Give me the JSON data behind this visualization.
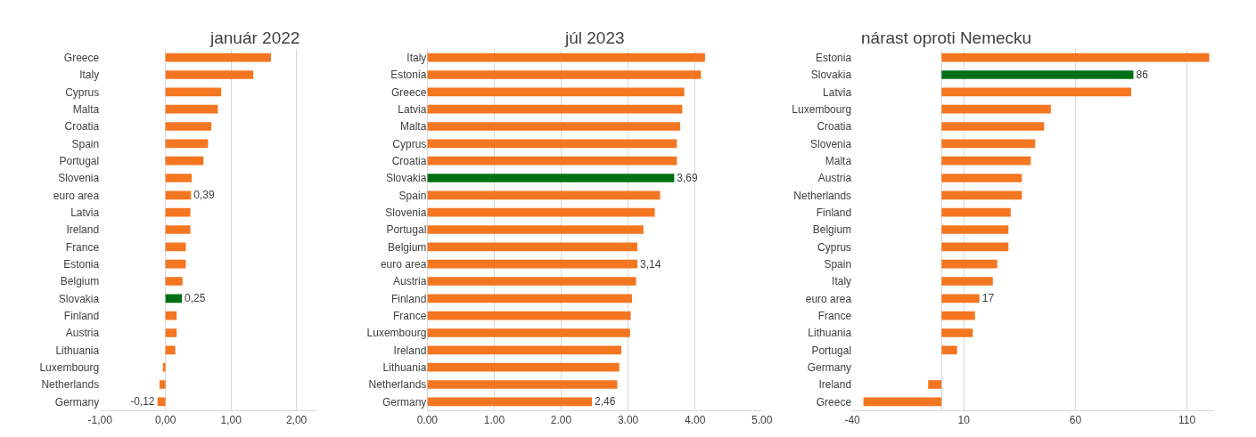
{
  "chart_data": [
    {
      "type": "bar",
      "orientation": "horizontal",
      "title": "január 2022",
      "categories": [
        "Greece",
        "Italy",
        "Cyprus",
        "Malta",
        "Croatia",
        "Spain",
        "Portugal",
        "Slovenia",
        "euro area",
        "Latvia",
        "Ireland",
        "France",
        "Estonia",
        "Belgium",
        "Slovakia",
        "Finland",
        "Austria",
        "Lithuania",
        "Luxembourg",
        "Netherlands",
        "Germany"
      ],
      "values": [
        1.61,
        1.34,
        0.85,
        0.8,
        0.7,
        0.65,
        0.58,
        0.4,
        0.39,
        0.38,
        0.38,
        0.31,
        0.31,
        0.26,
        0.25,
        0.17,
        0.17,
        0.15,
        -0.04,
        -0.09,
        -0.12
      ],
      "colors": [
        "#f47621",
        "#f47621",
        "#f47621",
        "#f47621",
        "#f47621",
        "#f47621",
        "#f47621",
        "#f47621",
        "#f47621",
        "#f47621",
        "#f47621",
        "#f47621",
        "#f47621",
        "#f47621",
        "#007016",
        "#f47621",
        "#f47621",
        "#f47621",
        "#f47621",
        "#f47621",
        "#f47621"
      ],
      "value_labels": [
        null,
        null,
        null,
        null,
        null,
        null,
        null,
        null,
        "0,39",
        null,
        null,
        null,
        null,
        null,
        "0,25",
        null,
        null,
        null,
        null,
        null,
        "-0,12"
      ],
      "xlim": [
        -1,
        2.3
      ],
      "xticks": [
        {
          "value": -1,
          "label": "-1,00"
        },
        {
          "value": 0,
          "label": "0,00"
        },
        {
          "value": 1,
          "label": "1,00"
        },
        {
          "value": 2,
          "label": "2,00"
        }
      ],
      "grid": "x"
    },
    {
      "type": "bar",
      "orientation": "horizontal",
      "title": "júl 2023",
      "categories": [
        "Italy",
        "Estonia",
        "Greece",
        "Latvia",
        "Malta",
        "Cyprus",
        "Croatia",
        "Slovakia",
        "Spain",
        "Slovenia",
        "Portugal",
        "Belgium",
        "euro area",
        "Austria",
        "Finland",
        "France",
        "Luxembourg",
        "Ireland",
        "Lithuania",
        "Netherlands",
        "Germany"
      ],
      "values": [
        4.15,
        4.09,
        3.84,
        3.81,
        3.78,
        3.73,
        3.73,
        3.69,
        3.48,
        3.4,
        3.23,
        3.14,
        3.14,
        3.12,
        3.06,
        3.04,
        3.03,
        2.9,
        2.87,
        2.84,
        2.46
      ],
      "colors": [
        "#f47621",
        "#f47621",
        "#f47621",
        "#f47621",
        "#f47621",
        "#f47621",
        "#f47621",
        "#007016",
        "#f47621",
        "#f47621",
        "#f47621",
        "#f47621",
        "#f47621",
        "#f47621",
        "#f47621",
        "#f47621",
        "#f47621",
        "#f47621",
        "#f47621",
        "#f47621",
        "#f47621"
      ],
      "value_labels": [
        null,
        null,
        null,
        null,
        null,
        null,
        null,
        "3,69",
        null,
        null,
        null,
        null,
        "3,14",
        null,
        null,
        null,
        null,
        null,
        null,
        null,
        "2,46"
      ],
      "xlim": [
        0,
        5
      ],
      "xticks": [
        {
          "value": 0,
          "label": "0.00"
        },
        {
          "value": 1,
          "label": "1.00"
        },
        {
          "value": 2,
          "label": "2.00"
        },
        {
          "value": 3,
          "label": "3.00"
        },
        {
          "value": 4,
          "label": "4.00"
        },
        {
          "value": 5,
          "label": "5.00"
        }
      ],
      "grid": "x"
    },
    {
      "type": "bar",
      "orientation": "horizontal",
      "title": "nárast oproti Nemecku",
      "categories": [
        "Estonia",
        "Slovakia",
        "Latvia",
        "Luxembourg",
        "Croatia",
        "Slovenia",
        "Malta",
        "Austria",
        "Netherlands",
        "Finland",
        "Belgium",
        "Cyprus",
        "Spain",
        "Italy",
        "euro area",
        "France",
        "Lithuania",
        "Portugal",
        "Germany",
        "Ireland",
        "Greece"
      ],
      "values": [
        120,
        86,
        85,
        49,
        46,
        42,
        40,
        36,
        36,
        31,
        30,
        30,
        25,
        23,
        17,
        15,
        14,
        7,
        0,
        -6,
        -35
      ],
      "colors": [
        "#f47621",
        "#007016",
        "#f47621",
        "#f47621",
        "#f47621",
        "#f47621",
        "#f47621",
        "#f47621",
        "#f47621",
        "#f47621",
        "#f47621",
        "#f47621",
        "#f47621",
        "#f47621",
        "#f47621",
        "#f47621",
        "#f47621",
        "#f47621",
        "#f47621",
        "#f47621",
        "#f47621"
      ],
      "value_labels": [
        null,
        "86",
        null,
        null,
        null,
        null,
        null,
        null,
        null,
        null,
        null,
        null,
        null,
        null,
        "17",
        null,
        null,
        null,
        null,
        null,
        null
      ],
      "xlim": [
        -40,
        122
      ],
      "xticks": [
        -40,
        10,
        60,
        110
      ],
      "grid": "x"
    }
  ]
}
